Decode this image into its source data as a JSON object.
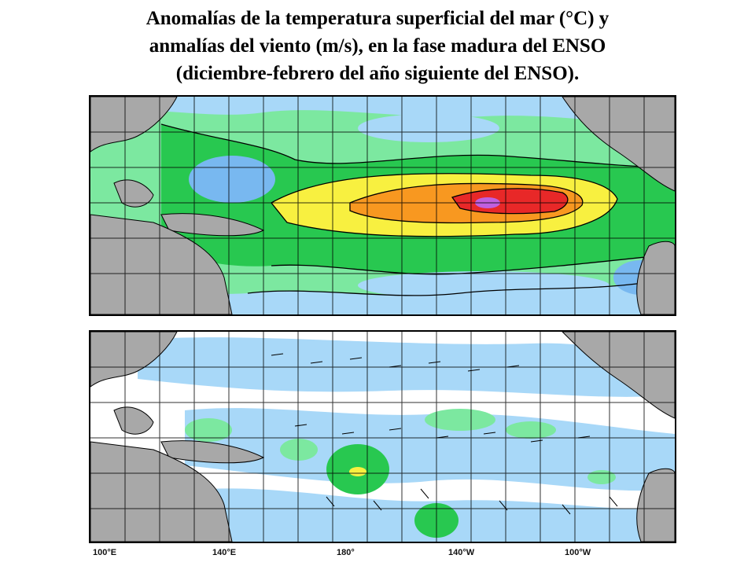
{
  "title": {
    "line1": "Anomalías de la temperatura superficial del mar (°C) y",
    "line2": "anmalías del viento (m/s), en la fase madura del ENSO",
    "line3": "(diciembre-febrero del año siguiente del ENSO)."
  },
  "longitude_labels": [
    "100°E",
    "140°E",
    "180°",
    "140°W",
    "100°W"
  ],
  "colors": {
    "land": "#a8a8a8",
    "light_blue": "#a8d8f8",
    "mid_blue": "#78b8f0",
    "green": "#28c850",
    "light_green": "#7ce8a0",
    "yellow": "#f8f040",
    "orange": "#f89820",
    "red": "#e82828",
    "purple": "#c060e0"
  }
}
